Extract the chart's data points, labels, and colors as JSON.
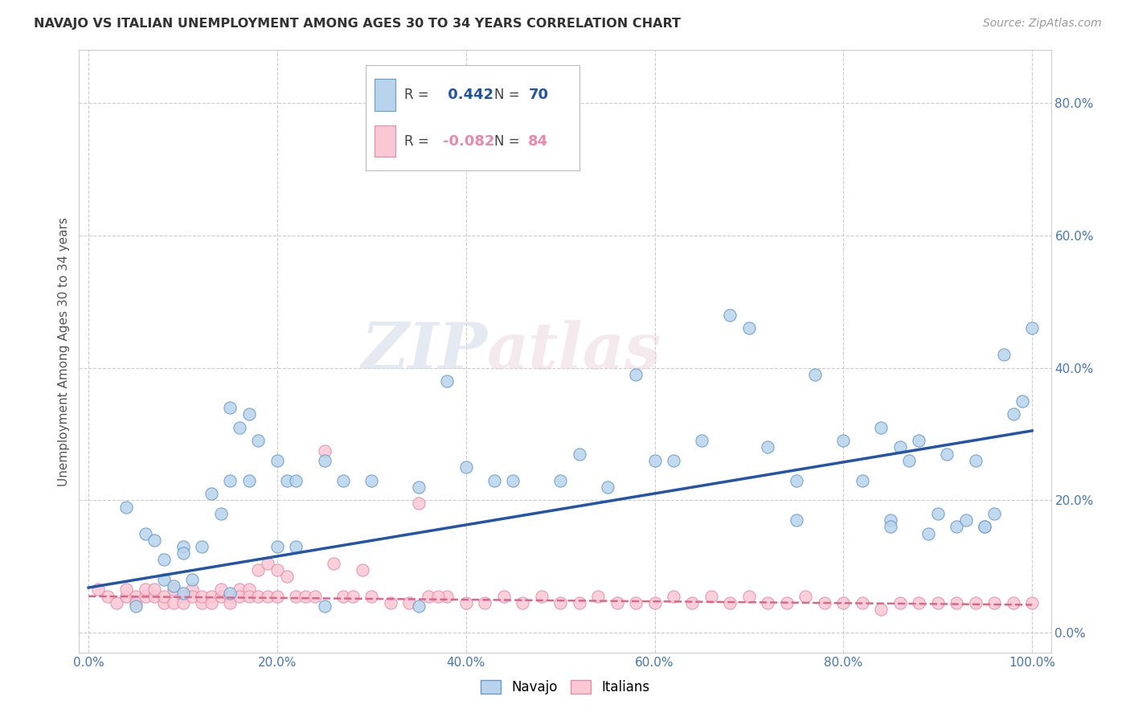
{
  "title": "NAVAJO VS ITALIAN UNEMPLOYMENT AMONG AGES 30 TO 34 YEARS CORRELATION CHART",
  "source": "Source: ZipAtlas.com",
  "ylabel": "Unemployment Among Ages 30 to 34 years",
  "xlim": [
    -0.01,
    1.02
  ],
  "ylim": [
    -0.03,
    0.88
  ],
  "xticks": [
    0.0,
    0.2,
    0.4,
    0.6,
    0.8,
    1.0
  ],
  "yticks": [
    0.0,
    0.2,
    0.4,
    0.6,
    0.8
  ],
  "xticklabels": [
    "0.0%",
    "20.0%",
    "40.0%",
    "60.0%",
    "80.0%",
    "100.0%"
  ],
  "yticklabels": [
    "0.0%",
    "20.0%",
    "40.0%",
    "60.0%",
    "80.0%"
  ],
  "navajo_R": 0.442,
  "navajo_N": 70,
  "italian_R": -0.082,
  "italian_N": 84,
  "navajo_color": "#b8d4ec",
  "navajo_edge": "#6699cc",
  "italian_color": "#f9c8d4",
  "italian_edge": "#e88aaa",
  "navajo_line_color": "#2255aa",
  "italian_line_color": "#dd6688",
  "watermark_zip": "ZIP",
  "watermark_atlas": "atlas",
  "navajo_x": [
    0.04,
    0.06,
    0.07,
    0.08,
    0.08,
    0.09,
    0.1,
    0.1,
    0.11,
    0.12,
    0.13,
    0.14,
    0.15,
    0.15,
    0.16,
    0.17,
    0.17,
    0.18,
    0.2,
    0.21,
    0.22,
    0.22,
    0.25,
    0.27,
    0.3,
    0.35,
    0.38,
    0.4,
    0.43,
    0.45,
    0.5,
    0.52,
    0.55,
    0.58,
    0.6,
    0.62,
    0.65,
    0.68,
    0.7,
    0.72,
    0.75,
    0.77,
    0.8,
    0.82,
    0.84,
    0.85,
    0.86,
    0.87,
    0.88,
    0.89,
    0.9,
    0.91,
    0.92,
    0.93,
    0.94,
    0.95,
    0.96,
    0.97,
    0.98,
    0.99,
    1.0,
    0.05,
    0.15,
    0.25,
    0.35,
    0.75,
    0.85,
    0.95,
    0.1,
    0.2
  ],
  "navajo_y": [
    0.19,
    0.15,
    0.14,
    0.11,
    0.08,
    0.07,
    0.06,
    0.13,
    0.08,
    0.13,
    0.21,
    0.18,
    0.23,
    0.34,
    0.31,
    0.33,
    0.23,
    0.29,
    0.13,
    0.23,
    0.13,
    0.23,
    0.26,
    0.23,
    0.23,
    0.22,
    0.38,
    0.25,
    0.23,
    0.23,
    0.23,
    0.27,
    0.22,
    0.39,
    0.26,
    0.26,
    0.29,
    0.48,
    0.46,
    0.28,
    0.23,
    0.39,
    0.29,
    0.23,
    0.31,
    0.17,
    0.28,
    0.26,
    0.29,
    0.15,
    0.18,
    0.27,
    0.16,
    0.17,
    0.26,
    0.16,
    0.18,
    0.42,
    0.33,
    0.35,
    0.46,
    0.04,
    0.06,
    0.04,
    0.04,
    0.17,
    0.16,
    0.16,
    0.12,
    0.26
  ],
  "italian_x": [
    0.01,
    0.02,
    0.03,
    0.04,
    0.04,
    0.05,
    0.05,
    0.06,
    0.06,
    0.07,
    0.07,
    0.08,
    0.08,
    0.09,
    0.09,
    0.1,
    0.1,
    0.11,
    0.11,
    0.12,
    0.12,
    0.13,
    0.13,
    0.14,
    0.14,
    0.15,
    0.15,
    0.16,
    0.16,
    0.17,
    0.17,
    0.18,
    0.18,
    0.19,
    0.19,
    0.2,
    0.2,
    0.21,
    0.22,
    0.23,
    0.24,
    0.25,
    0.26,
    0.27,
    0.28,
    0.29,
    0.3,
    0.32,
    0.34,
    0.36,
    0.38,
    0.4,
    0.42,
    0.44,
    0.46,
    0.48,
    0.5,
    0.52,
    0.54,
    0.56,
    0.58,
    0.6,
    0.62,
    0.64,
    0.66,
    0.68,
    0.7,
    0.72,
    0.74,
    0.76,
    0.78,
    0.8,
    0.82,
    0.84,
    0.86,
    0.88,
    0.9,
    0.92,
    0.94,
    0.96,
    0.98,
    1.0,
    0.35,
    0.37
  ],
  "italian_y": [
    0.065,
    0.055,
    0.045,
    0.055,
    0.065,
    0.055,
    0.045,
    0.055,
    0.065,
    0.055,
    0.065,
    0.045,
    0.055,
    0.045,
    0.065,
    0.055,
    0.045,
    0.065,
    0.055,
    0.045,
    0.055,
    0.055,
    0.045,
    0.055,
    0.065,
    0.055,
    0.045,
    0.065,
    0.055,
    0.065,
    0.055,
    0.095,
    0.055,
    0.105,
    0.055,
    0.095,
    0.055,
    0.085,
    0.055,
    0.055,
    0.055,
    0.275,
    0.105,
    0.055,
    0.055,
    0.095,
    0.055,
    0.045,
    0.045,
    0.055,
    0.055,
    0.045,
    0.045,
    0.055,
    0.045,
    0.055,
    0.045,
    0.045,
    0.055,
    0.045,
    0.045,
    0.045,
    0.055,
    0.045,
    0.055,
    0.045,
    0.055,
    0.045,
    0.045,
    0.055,
    0.045,
    0.045,
    0.045,
    0.035,
    0.045,
    0.045,
    0.045,
    0.045,
    0.045,
    0.045,
    0.045,
    0.045,
    0.195,
    0.055
  ],
  "navajo_line_x0": 0.0,
  "navajo_line_y0": 0.068,
  "navajo_line_x1": 1.0,
  "navajo_line_y1": 0.305,
  "italian_line_x0": 0.0,
  "italian_line_y0": 0.055,
  "italian_line_x1": 1.0,
  "italian_line_y1": 0.042
}
